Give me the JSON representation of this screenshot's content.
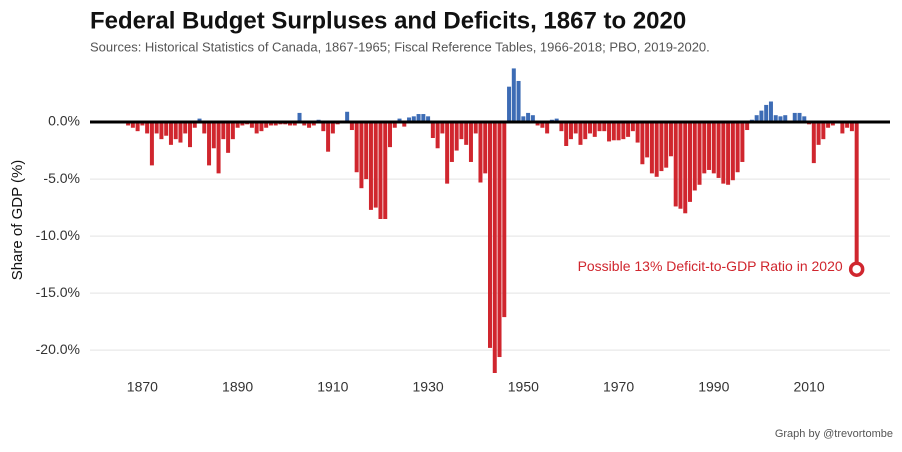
{
  "chart_data": {
    "type": "bar",
    "title": "Federal Budget Surpluses and Deficits, 1867 to 2020",
    "subtitle": "Sources: Historical Statistics of Canada, 1867-1965; Fiscal Reference Tables, 1966-2018; PBO, 2019-2020.",
    "y_label": "Share of GDP (%)",
    "annotation": "Possible 13% Deficit-to-GDP Ratio in 2020",
    "caption": "Graph by @trevortombe",
    "colors": {
      "positive": "#3d6cb5",
      "negative": "#d0262e"
    },
    "x": [
      1867,
      1868,
      1869,
      1870,
      1871,
      1872,
      1873,
      1874,
      1875,
      1876,
      1877,
      1878,
      1879,
      1880,
      1881,
      1882,
      1883,
      1884,
      1885,
      1886,
      1887,
      1888,
      1889,
      1890,
      1891,
      1892,
      1893,
      1894,
      1895,
      1896,
      1897,
      1898,
      1899,
      1900,
      1901,
      1902,
      1903,
      1904,
      1905,
      1906,
      1907,
      1908,
      1909,
      1910,
      1911,
      1912,
      1913,
      1914,
      1915,
      1916,
      1917,
      1918,
      1919,
      1920,
      1921,
      1922,
      1923,
      1924,
      1925,
      1926,
      1927,
      1928,
      1929,
      1930,
      1931,
      1932,
      1933,
      1934,
      1935,
      1936,
      1937,
      1938,
      1939,
      1940,
      1941,
      1942,
      1943,
      1944,
      1945,
      1946,
      1947,
      1948,
      1949,
      1950,
      1951,
      1952,
      1953,
      1954,
      1955,
      1956,
      1957,
      1958,
      1959,
      1960,
      1961,
      1962,
      1963,
      1964,
      1965,
      1966,
      1967,
      1968,
      1969,
      1970,
      1971,
      1972,
      1973,
      1974,
      1975,
      1976,
      1977,
      1978,
      1979,
      1980,
      1981,
      1982,
      1983,
      1984,
      1985,
      1986,
      1987,
      1988,
      1989,
      1990,
      1991,
      1992,
      1993,
      1994,
      1995,
      1996,
      1997,
      1998,
      1999,
      2000,
      2001,
      2002,
      2003,
      2004,
      2005,
      2006,
      2007,
      2008,
      2009,
      2010,
      2011,
      2012,
      2013,
      2014,
      2015,
      2016,
      2017,
      2018,
      2019,
      2020
    ],
    "values": [
      -0.3,
      -0.5,
      -0.8,
      -0.3,
      -1.0,
      -3.8,
      -1.0,
      -1.5,
      -1.2,
      -2.0,
      -1.5,
      -1.8,
      -1.0,
      -2.2,
      -0.5,
      0.3,
      -1.0,
      -3.8,
      -2.3,
      -4.5,
      -1.5,
      -2.7,
      -1.5,
      -0.5,
      -0.3,
      -0.2,
      -0.5,
      -1.0,
      -0.8,
      -0.5,
      -0.3,
      -0.3,
      -0.2,
      -0.2,
      -0.3,
      -0.3,
      0.8,
      -0.3,
      -0.5,
      -0.3,
      0.2,
      -0.8,
      -2.6,
      -1.0,
      -0.2,
      -0.1,
      0.9,
      -0.7,
      -4.4,
      -5.8,
      -5.0,
      -7.7,
      -7.5,
      -8.5,
      -8.5,
      -2.2,
      -0.5,
      0.3,
      -0.4,
      0.4,
      0.5,
      0.7,
      0.7,
      0.5,
      -1.4,
      -2.3,
      -1.0,
      -5.4,
      -3.5,
      -2.5,
      -1.5,
      -2.0,
      -3.5,
      -1.0,
      -5.3,
      -4.5,
      -19.8,
      -22.0,
      -20.6,
      -17.1,
      3.1,
      4.7,
      3.6,
      0.5,
      0.8,
      0.6,
      -0.3,
      -0.5,
      -1.0,
      0.2,
      0.3,
      -0.8,
      -2.1,
      -1.5,
      -1.0,
      -2.0,
      -1.5,
      -1.0,
      -1.3,
      -0.8,
      -0.8,
      -1.7,
      -1.6,
      -1.6,
      -1.5,
      -1.3,
      -0.8,
      -1.8,
      -3.7,
      -3.1,
      -4.5,
      -4.8,
      -4.3,
      -4.0,
      -3.0,
      -7.4,
      -7.6,
      -8.0,
      -7.0,
      -6.0,
      -5.5,
      -4.5,
      -4.2,
      -4.5,
      -4.9,
      -5.4,
      -5.5,
      -5.1,
      -4.4,
      -3.5,
      -0.7,
      0.2,
      0.6,
      1.0,
      1.5,
      1.8,
      0.6,
      0.5,
      0.6,
      0.1,
      0.8,
      0.8,
      0.5,
      -0.2,
      -3.6,
      -2.0,
      -1.5,
      -0.5,
      -0.3,
      0.1,
      -1.0,
      -0.5,
      -0.8,
      -12.9
    ],
    "xlim": [
      1859,
      2027
    ],
    "xticks": [
      1870,
      1890,
      1910,
      1930,
      1950,
      1970,
      1990,
      2010
    ],
    "ylim": [
      -22,
      5
    ],
    "yticks": [
      {
        "value": 0,
        "label": "0.0%"
      },
      {
        "value": -5,
        "label": "-5.0%"
      },
      {
        "value": -10,
        "label": "-10.0%"
      },
      {
        "value": -15,
        "label": "-15.0%"
      },
      {
        "value": -20,
        "label": "-20.0%"
      }
    ],
    "grid": true
  }
}
